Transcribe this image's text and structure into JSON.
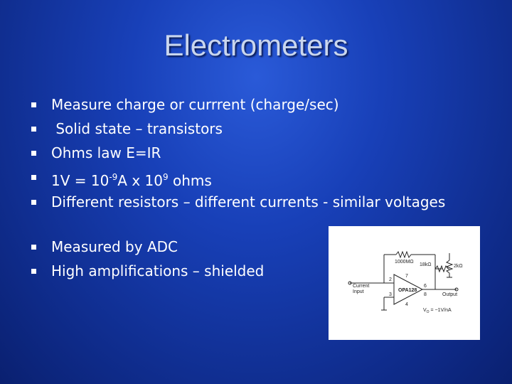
{
  "title": "Electrometers",
  "bullets": [
    "Measure charge or currrent (charge/sec)",
    " Solid state – transistors",
    "Ohms law E=IR",
    {
      "parts": [
        "1V = 10",
        "-9",
        "A x 10",
        "9",
        " ohms"
      ]
    },
    "Different resistors – different currents - similar voltages",
    "Measured by ADC",
    "High amplifications – shielded"
  ],
  "diagram": {
    "labels": [
      "1000MΩ",
      "18kΩ",
      "2kΩ",
      "2",
      "3",
      "7",
      "4",
      "6",
      "8",
      "OPA128",
      "Current",
      "Input",
      "Output",
      "V",
      "O",
      " = −1V/nA"
    ]
  }
}
